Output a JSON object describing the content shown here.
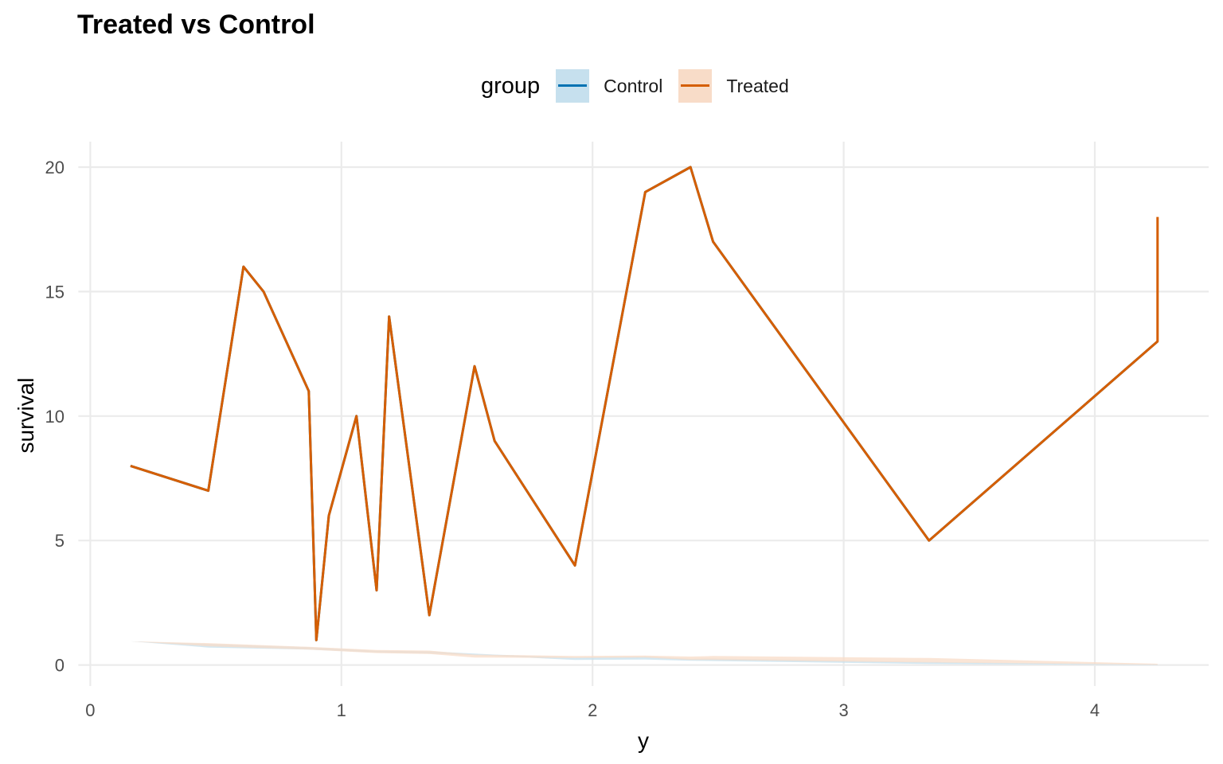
{
  "chart_data": {
    "type": "line",
    "title": "Treated vs Control",
    "xlabel": "y",
    "ylabel": "survival",
    "xlim": [
      0,
      4.45
    ],
    "ylim": [
      -0.9,
      21
    ],
    "xticks": [
      0,
      1,
      2,
      3,
      4
    ],
    "yticks": [
      0,
      5,
      10,
      15,
      20
    ],
    "grid": true,
    "legend": {
      "title": "group",
      "placement": "top",
      "entries": [
        {
          "name": "Control",
          "line_color": "#0072B2",
          "fill_color": "#C6E0EE"
        },
        {
          "name": "Treated",
          "line_color": "#D55E00",
          "fill_color": "#F8DCC8"
        }
      ]
    },
    "series": [
      {
        "name": "Treated",
        "color": "#D55E00",
        "x": [
          0.16,
          0.47,
          0.61,
          0.69,
          0.87,
          0.9,
          0.95,
          1.06,
          1.14,
          1.19,
          1.35,
          1.53,
          1.61,
          1.93,
          2.21,
          2.39,
          2.48,
          3.34,
          4.25,
          4.25,
          4.25,
          4.25
        ],
        "y": [
          8,
          7,
          16,
          15,
          11,
          1,
          6,
          10,
          3,
          14,
          2,
          12,
          9,
          4,
          19,
          20,
          17,
          5,
          13,
          13.6,
          15.5,
          18
        ]
      },
      {
        "name": "Control",
        "color": "#0072B2",
        "x": [
          0.16,
          0.47,
          0.61,
          0.69,
          0.87,
          0.9,
          0.95,
          1.06,
          1.14,
          1.19,
          1.35,
          1.53,
          1.61,
          1.93,
          2.21,
          2.39,
          2.48,
          3.34,
          4.25
        ],
        "y": [
          8,
          7,
          16,
          15,
          11,
          1,
          6,
          10,
          3,
          14,
          2,
          12,
          9,
          4,
          19,
          20,
          17,
          5,
          13
        ]
      }
    ],
    "bands": [
      {
        "name": "Control",
        "color": "#C6E0EE",
        "x": [
          0.16,
          0.47,
          0.87,
          1.14,
          1.35,
          1.61,
          1.93,
          2.21,
          2.39,
          2.48,
          3.34,
          4.25
        ],
        "lower": [
          0.95,
          0.7,
          0.62,
          0.5,
          0.46,
          0.36,
          0.2,
          0.22,
          0.17,
          0.16,
          0.04,
          0.0
        ],
        "upper": [
          0.95,
          0.85,
          0.72,
          0.58,
          0.55,
          0.42,
          0.3,
          0.34,
          0.25,
          0.26,
          0.12,
          0.02
        ]
      },
      {
        "name": "Treated",
        "color": "#F8DCC8",
        "x": [
          0.16,
          0.47,
          0.87,
          1.14,
          1.35,
          1.53,
          1.93,
          2.21,
          2.39,
          2.48,
          3.34,
          4.25
        ],
        "lower": [
          0.95,
          0.75,
          0.62,
          0.48,
          0.44,
          0.3,
          0.28,
          0.3,
          0.2,
          0.2,
          0.1,
          0.01
        ],
        "upper": [
          0.95,
          0.88,
          0.73,
          0.6,
          0.58,
          0.42,
          0.36,
          0.38,
          0.34,
          0.36,
          0.28,
          0.05
        ]
      }
    ]
  }
}
